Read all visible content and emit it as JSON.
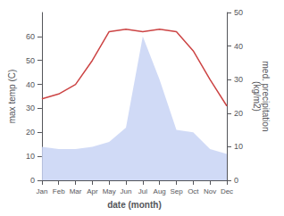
{
  "chart_data": {
    "type": "line",
    "xlabel": "date (month)",
    "ylabel": "max temp (C)",
    "y2label": "med. precipitation\n(kg/m2)",
    "categories": [
      "Jan",
      "Feb",
      "Mar",
      "Apr",
      "May",
      "Jun",
      "Jul",
      "Aug",
      "Sep",
      "Oct",
      "Nov",
      "Dec"
    ],
    "series": [
      {
        "type": "area",
        "color": "#c8d4f5",
        "values": [
          14,
          13,
          13,
          14,
          16,
          22,
          60,
          42,
          21,
          20,
          13,
          11
        ]
      },
      {
        "type": "line",
        "color": "#cc4444",
        "values": [
          34,
          36,
          40,
          50,
          62,
          63,
          62,
          63,
          62,
          54,
          42,
          31
        ]
      }
    ],
    "ylim": [
      0,
      70
    ],
    "yticks": [
      0,
      10,
      20,
      30,
      40,
      50,
      60
    ],
    "y2lim": [
      0,
      50
    ],
    "y2ticks": [
      0,
      10,
      20,
      30,
      40,
      50
    ],
    "grid": false
  }
}
